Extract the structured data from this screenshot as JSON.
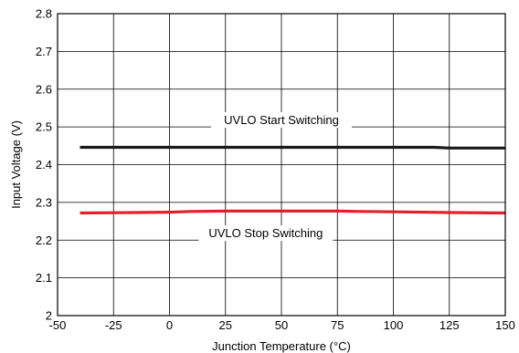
{
  "chart_data": {
    "type": "line",
    "xlabel": "Junction Temperature (°C)",
    "ylabel": "Input Voltage (V)",
    "xlim": [
      -50,
      150
    ],
    "ylim": [
      2.0,
      2.8
    ],
    "xticks": [
      "-50",
      "-25",
      "0",
      "25",
      "50",
      "75",
      "100",
      "125",
      "150"
    ],
    "yticks": [
      "2",
      "2.1",
      "2.2",
      "2.3",
      "2.4",
      "2.5",
      "2.6",
      "2.7",
      "2.8"
    ],
    "grid": true,
    "series": [
      {
        "name": "UVLO Start Switching",
        "color": "#1a1a1a",
        "x": [
          -40,
          -25,
          0,
          25,
          50,
          75,
          100,
          118,
          125,
          150
        ],
        "y": [
          2.446,
          2.446,
          2.446,
          2.446,
          2.446,
          2.446,
          2.446,
          2.446,
          2.444,
          2.444
        ]
      },
      {
        "name": "UVLO Stop Switching",
        "color": "#e0202a",
        "x": [
          -40,
          -15,
          0,
          10,
          25,
          50,
          75,
          85,
          100,
          125,
          150
        ],
        "y": [
          2.272,
          2.273,
          2.274,
          2.276,
          2.277,
          2.277,
          2.277,
          2.276,
          2.275,
          2.273,
          2.272
        ]
      }
    ],
    "annotations": [
      {
        "text": "UVLO Start Switching",
        "x": 50,
        "y": 2.51
      },
      {
        "text": "UVLO Stop Switching",
        "x": 43,
        "y": 2.21
      }
    ]
  }
}
